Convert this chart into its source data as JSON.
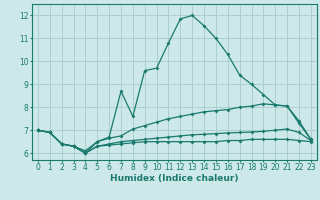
{
  "xlabel": "Humidex (Indice chaleur)",
  "bg_color": "#cce8e8",
  "grid_color": "#aacfcf",
  "line_color": "#1a7a6e",
  "xlim": [
    -0.5,
    23.5
  ],
  "ylim": [
    5.7,
    12.5
  ],
  "xticks": [
    0,
    1,
    2,
    3,
    4,
    5,
    6,
    7,
    8,
    9,
    10,
    11,
    12,
    13,
    14,
    15,
    16,
    17,
    18,
    19,
    20,
    21,
    22,
    23
  ],
  "yticks": [
    6,
    7,
    8,
    9,
    10,
    11,
    12
  ],
  "line1_x": [
    0,
    1,
    2,
    3,
    4,
    5,
    6,
    7,
    8,
    9,
    10,
    11,
    12,
    13,
    14,
    15,
    16,
    17,
    18,
    19,
    20,
    21,
    22,
    23
  ],
  "line1_y": [
    7.0,
    6.9,
    6.4,
    6.3,
    6.1,
    6.5,
    6.7,
    8.7,
    7.6,
    9.6,
    9.7,
    10.8,
    11.85,
    12.0,
    11.55,
    11.0,
    10.3,
    9.4,
    9.0,
    8.55,
    8.1,
    8.05,
    7.3,
    6.6
  ],
  "line2_x": [
    0,
    1,
    2,
    3,
    4,
    5,
    6,
    7,
    8,
    9,
    10,
    11,
    12,
    13,
    14,
    15,
    16,
    17,
    18,
    19,
    20,
    21,
    22,
    23
  ],
  "line2_y": [
    7.0,
    6.9,
    6.4,
    6.3,
    6.0,
    6.5,
    6.65,
    6.75,
    7.05,
    7.2,
    7.35,
    7.5,
    7.6,
    7.7,
    7.8,
    7.85,
    7.9,
    8.0,
    8.05,
    8.15,
    8.1,
    8.05,
    7.4,
    6.6
  ],
  "line3_x": [
    0,
    1,
    2,
    3,
    4,
    5,
    6,
    7,
    8,
    9,
    10,
    11,
    12,
    13,
    14,
    15,
    16,
    17,
    18,
    19,
    20,
    21,
    22,
    23
  ],
  "line3_y": [
    7.0,
    6.9,
    6.4,
    6.3,
    6.0,
    6.3,
    6.35,
    6.4,
    6.45,
    6.5,
    6.5,
    6.5,
    6.5,
    6.5,
    6.5,
    6.5,
    6.55,
    6.55,
    6.6,
    6.6,
    6.6,
    6.6,
    6.55,
    6.5
  ],
  "line4_x": [
    0,
    1,
    2,
    3,
    4,
    5,
    6,
    7,
    8,
    9,
    10,
    11,
    12,
    13,
    14,
    15,
    16,
    17,
    18,
    19,
    20,
    21,
    22,
    23
  ],
  "line4_y": [
    7.0,
    6.9,
    6.4,
    6.3,
    6.0,
    6.3,
    6.4,
    6.5,
    6.55,
    6.6,
    6.65,
    6.7,
    6.75,
    6.8,
    6.82,
    6.85,
    6.88,
    6.9,
    6.92,
    6.95,
    7.0,
    7.05,
    6.9,
    6.55
  ],
  "marker": "D",
  "marker_size": 2.0,
  "line_width": 0.9,
  "xlabel_fontsize": 6.5,
  "tick_fontsize": 5.5
}
